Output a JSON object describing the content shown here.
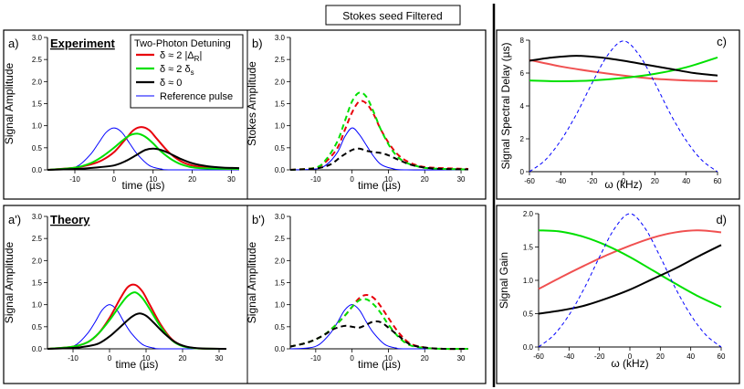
{
  "header": {
    "title": "Stokes seed Filtered"
  },
  "legend": {
    "title": "Two-Photon Detuning",
    "entries": [
      {
        "label": "δ ≈ 2 |Δ",
        "sub": "R",
        "tail": "|",
        "color": "#e8000b"
      },
      {
        "label": "δ ≈ 2 δ",
        "sub": "s",
        "tail": "",
        "color": "#00e000"
      },
      {
        "label": "δ ≈ 0",
        "sub": "",
        "tail": "",
        "color": "#000000"
      },
      {
        "label": "Reference pulse",
        "sub": "",
        "tail": "",
        "color": "#0000ff"
      }
    ]
  },
  "colors": {
    "red": "#e8000b",
    "green": "#00e000",
    "black": "#000000",
    "blue": "#0000ff",
    "light_red": "#f05050"
  },
  "chart_data": [
    {
      "id": "a",
      "panel_label": "a)",
      "title": "Experiment",
      "type": "line",
      "xlabel": "time (µs)",
      "ylabel": "Signal Amplitude",
      "xlim": [
        -17,
        32
      ],
      "ylim": [
        0,
        3.0
      ],
      "xticks": [
        -10,
        0,
        10,
        20,
        30
      ],
      "yticks": [
        0,
        0.5,
        1.0,
        1.5,
        2.0,
        2.5,
        3.0
      ],
      "ytick_labels": [
        "0.0",
        "0.5",
        "1.0",
        "1.5",
        "2.0",
        "2.5",
        "3.0"
      ],
      "series": [
        {
          "name": "Reference pulse",
          "color": "blue",
          "style": "solid",
          "width": 1,
          "x": [
            -17,
            -12,
            -9,
            -6,
            -4,
            -2,
            0,
            2,
            4,
            6,
            9,
            12,
            15,
            32
          ],
          "y": [
            0,
            0.02,
            0.1,
            0.35,
            0.6,
            0.85,
            0.95,
            0.85,
            0.6,
            0.35,
            0.1,
            0.02,
            0,
            0
          ]
        },
        {
          "name": "δ ≈ 2 |ΔR|",
          "color": "red",
          "style": "solid",
          "width": 2,
          "x": [
            -17,
            -10,
            -6,
            -3,
            0,
            3,
            5,
            7,
            9,
            11,
            14,
            17,
            20,
            25,
            32
          ],
          "y": [
            0,
            0.05,
            0.12,
            0.22,
            0.4,
            0.7,
            0.9,
            0.97,
            0.9,
            0.7,
            0.4,
            0.2,
            0.1,
            0.04,
            0.02
          ]
        },
        {
          "name": "δ ≈ 2 δs",
          "color": "green",
          "style": "solid",
          "width": 2,
          "x": [
            -17,
            -10,
            -6,
            -3,
            0,
            2,
            4,
            6,
            8,
            10,
            12,
            15,
            18,
            22,
            32
          ],
          "y": [
            0,
            0.05,
            0.15,
            0.3,
            0.5,
            0.65,
            0.78,
            0.82,
            0.75,
            0.6,
            0.42,
            0.22,
            0.1,
            0.04,
            0.02
          ]
        },
        {
          "name": "δ ≈ 0",
          "color": "black",
          "style": "solid",
          "width": 2,
          "x": [
            -17,
            -10,
            -5,
            0,
            3,
            6,
            8,
            10,
            12,
            14,
            17,
            20,
            24,
            28,
            32
          ],
          "y": [
            0,
            0.02,
            0.05,
            0.1,
            0.2,
            0.35,
            0.45,
            0.48,
            0.45,
            0.38,
            0.25,
            0.15,
            0.08,
            0.05,
            0.04
          ]
        }
      ]
    },
    {
      "id": "b",
      "panel_label": "b)",
      "title": "",
      "type": "line",
      "xlabel": "time (µs)",
      "ylabel": "Stokes Amplitude",
      "xlim": [
        -17,
        32
      ],
      "ylim": [
        0,
        3.0
      ],
      "xticks": [
        -10,
        0,
        10,
        20,
        30
      ],
      "yticks": [
        0,
        0.5,
        1.0,
        1.5,
        2.0,
        2.5,
        3.0
      ],
      "ytick_labels": [
        "0.0",
        "0.5",
        "1.0",
        "1.5",
        "2.0",
        "2.5",
        "3.0"
      ],
      "series": [
        {
          "name": "Reference pulse",
          "color": "blue",
          "style": "solid",
          "width": 1,
          "x": [
            -17,
            -10,
            -7,
            -4,
            -2,
            0,
            2,
            4,
            6,
            8,
            11,
            15,
            32
          ],
          "y": [
            0,
            0.02,
            0.12,
            0.4,
            0.75,
            0.95,
            0.8,
            0.55,
            0.3,
            0.12,
            0.03,
            0,
            0
          ]
        },
        {
          "name": "δ ≈ 2 |ΔR|",
          "color": "red",
          "style": "dashed",
          "width": 2,
          "x": [
            -17,
            -10,
            -7,
            -4,
            -2,
            0,
            2,
            4,
            6,
            8,
            11,
            14,
            18,
            22,
            32
          ],
          "y": [
            0,
            0.05,
            0.2,
            0.5,
            0.9,
            1.3,
            1.55,
            1.5,
            1.25,
            0.9,
            0.5,
            0.25,
            0.1,
            0.05,
            0.02
          ]
        },
        {
          "name": "δ ≈ 2 δs",
          "color": "green",
          "style": "dashed",
          "width": 2,
          "x": [
            -17,
            -10,
            -7,
            -4,
            -2,
            0,
            2,
            4,
            6,
            8,
            11,
            14,
            18,
            22,
            32
          ],
          "y": [
            0,
            0.05,
            0.25,
            0.65,
            1.1,
            1.55,
            1.75,
            1.65,
            1.3,
            0.9,
            0.45,
            0.2,
            0.08,
            0.03,
            0.01
          ]
        },
        {
          "name": "δ ≈ 0",
          "color": "black",
          "style": "dashed",
          "width": 2,
          "x": [
            -17,
            -10,
            -6,
            -3,
            0,
            2,
            4,
            6,
            8,
            10,
            13,
            16,
            20,
            25,
            32
          ],
          "y": [
            0,
            0.03,
            0.12,
            0.3,
            0.45,
            0.48,
            0.43,
            0.4,
            0.38,
            0.33,
            0.22,
            0.12,
            0.05,
            0.02,
            0.01
          ]
        }
      ]
    },
    {
      "id": "a_prime",
      "panel_label": "a')",
      "title": "Theory",
      "type": "line",
      "xlabel": "time (µs)",
      "ylabel": "Signal Amplitude",
      "xlim": [
        -17,
        32
      ],
      "ylim": [
        0,
        3.0
      ],
      "xticks": [
        -10,
        0,
        10,
        20,
        30
      ],
      "yticks": [
        0,
        0.5,
        1.0,
        1.5,
        2.0,
        2.5,
        3.0
      ],
      "ytick_labels": [
        "0.0",
        "0.5",
        "1.0",
        "1.5",
        "2.0",
        "2.5",
        "3.0"
      ],
      "series": [
        {
          "name": "Reference pulse",
          "color": "blue",
          "style": "solid",
          "width": 1,
          "x": [
            -17,
            -12,
            -9,
            -6,
            -4,
            -2,
            0,
            2,
            4,
            6,
            9,
            12,
            15,
            32
          ],
          "y": [
            0,
            0.02,
            0.1,
            0.35,
            0.6,
            0.88,
            1.0,
            0.88,
            0.6,
            0.35,
            0.1,
            0.02,
            0,
            0
          ]
        },
        {
          "name": "δ ≈ 2 |ΔR|",
          "color": "red",
          "style": "solid",
          "width": 2,
          "x": [
            -17,
            -10,
            -6,
            -3,
            0,
            3,
            5,
            7,
            9,
            11,
            14,
            17,
            20,
            24,
            32
          ],
          "y": [
            0,
            0.05,
            0.15,
            0.35,
            0.7,
            1.15,
            1.4,
            1.45,
            1.3,
            1.0,
            0.55,
            0.22,
            0.07,
            0.01,
            0
          ]
        },
        {
          "name": "δ ≈ 2 δs",
          "color": "green",
          "style": "solid",
          "width": 2,
          "x": [
            -17,
            -10,
            -6,
            -3,
            0,
            3,
            5,
            7,
            9,
            11,
            14,
            17,
            20,
            24,
            32
          ],
          "y": [
            0,
            0.05,
            0.15,
            0.35,
            0.65,
            1.0,
            1.2,
            1.28,
            1.15,
            0.9,
            0.5,
            0.2,
            0.06,
            0.01,
            0
          ]
        },
        {
          "name": "δ ≈ 0",
          "color": "black",
          "style": "solid",
          "width": 2,
          "x": [
            -17,
            -10,
            -6,
            -3,
            0,
            3,
            6,
            8,
            10,
            12,
            15,
            18,
            21,
            25,
            32
          ],
          "y": [
            0,
            0.02,
            0.06,
            0.12,
            0.28,
            0.5,
            0.72,
            0.8,
            0.75,
            0.6,
            0.35,
            0.15,
            0.05,
            0.01,
            0
          ]
        }
      ]
    },
    {
      "id": "b_prime",
      "panel_label": "b')",
      "title": "",
      "type": "line",
      "xlabel": "time (µs)",
      "ylabel": "Signal Amplitude",
      "xlim": [
        -17,
        32
      ],
      "ylim": [
        0,
        3.0
      ],
      "xticks": [
        -10,
        0,
        10,
        20,
        30
      ],
      "yticks": [
        0,
        0.5,
        1.0,
        1.5,
        2.0,
        2.5,
        3.0
      ],
      "ytick_labels": [
        "0.0",
        "0.5",
        "1.0",
        "1.5",
        "2.0",
        "2.5",
        "3.0"
      ],
      "series": [
        {
          "name": "Reference pulse",
          "color": "blue",
          "style": "solid",
          "width": 1,
          "x": [
            -17,
            -12,
            -9,
            -6,
            -4,
            -2,
            0,
            2,
            4,
            6,
            9,
            12,
            15,
            32
          ],
          "y": [
            0,
            0.02,
            0.1,
            0.35,
            0.6,
            0.88,
            1.0,
            0.88,
            0.6,
            0.35,
            0.1,
            0.02,
            0,
            0
          ]
        },
        {
          "name": "δ ≈ 2 |ΔR|",
          "color": "red",
          "style": "dashed",
          "width": 2,
          "x": [
            -17,
            -12,
            -8,
            -5,
            -2,
            0,
            2,
            4,
            6,
            8,
            10,
            13,
            16,
            20,
            25,
            32
          ],
          "y": [
            0.05,
            0.15,
            0.3,
            0.5,
            0.75,
            0.95,
            1.15,
            1.22,
            1.15,
            0.95,
            0.7,
            0.35,
            0.12,
            0.03,
            0,
            0
          ]
        },
        {
          "name": "δ ≈ 2 δs",
          "color": "green",
          "style": "dashed",
          "width": 2,
          "x": [
            -17,
            -12,
            -8,
            -5,
            -2,
            0,
            2,
            4,
            6,
            8,
            10,
            13,
            16,
            20,
            25,
            32
          ],
          "y": [
            0.05,
            0.15,
            0.3,
            0.5,
            0.75,
            0.95,
            1.1,
            1.12,
            1.0,
            0.8,
            0.55,
            0.25,
            0.08,
            0.02,
            0,
            0
          ]
        },
        {
          "name": "δ ≈ 0",
          "color": "black",
          "style": "dashed",
          "width": 2,
          "x": [
            -17,
            -12,
            -8,
            -5,
            -2,
            0,
            2,
            4,
            6,
            8,
            10,
            13,
            16,
            20,
            25,
            32
          ],
          "y": [
            0.05,
            0.15,
            0.3,
            0.45,
            0.52,
            0.5,
            0.48,
            0.55,
            0.62,
            0.6,
            0.48,
            0.28,
            0.1,
            0.03,
            0,
            0
          ]
        }
      ]
    },
    {
      "id": "c",
      "panel_label": "c)",
      "title": "",
      "type": "line",
      "xlabel": "ω (kHz)",
      "ylabel": "Signal Spectral Delay (µs)",
      "xlim": [
        -60,
        60
      ],
      "ylim": [
        0,
        8
      ],
      "xticks": [
        -60,
        -40,
        -20,
        0,
        20,
        40,
        60
      ],
      "yticks": [
        0,
        2,
        4,
        6,
        8
      ],
      "ytick_labels": [
        "0",
        "2",
        "4",
        "6",
        "8"
      ],
      "series": [
        {
          "name": "δ ≈ 2 |ΔR|",
          "color": "light_red",
          "style": "solid",
          "width": 2,
          "x": [
            -60,
            -40,
            -20,
            0,
            20,
            40,
            60
          ],
          "y": [
            6.8,
            6.4,
            6.1,
            5.85,
            5.65,
            5.55,
            5.5
          ]
        },
        {
          "name": "δ ≈ 2 δs",
          "color": "green",
          "style": "solid",
          "width": 2,
          "x": [
            -60,
            -40,
            -20,
            0,
            20,
            40,
            60
          ],
          "y": [
            5.55,
            5.5,
            5.55,
            5.7,
            5.95,
            6.35,
            6.95
          ]
        },
        {
          "name": "δ ≈ 0",
          "color": "black",
          "style": "solid",
          "width": 2,
          "x": [
            -60,
            -45,
            -30,
            -15,
            0,
            15,
            30,
            45,
            60
          ],
          "y": [
            6.75,
            6.95,
            7.05,
            6.95,
            6.75,
            6.5,
            6.25,
            6.0,
            5.85
          ]
        },
        {
          "name": "Reference pulse",
          "color": "blue",
          "style": "dashed",
          "width": 1,
          "x": [
            -60,
            -50,
            -40,
            -30,
            -20,
            -10,
            0,
            10,
            20,
            30,
            40,
            50,
            60
          ],
          "y": [
            0,
            0.7,
            1.9,
            3.5,
            5.4,
            7.1,
            7.95,
            7.1,
            5.4,
            3.5,
            1.9,
            0.7,
            0
          ]
        }
      ]
    },
    {
      "id": "d",
      "panel_label": "d)",
      "title": "",
      "type": "line",
      "xlabel": "ω (kHz)",
      "ylabel": "Signal Gain",
      "xlim": [
        -60,
        60
      ],
      "ylim": [
        0,
        2.0
      ],
      "xticks": [
        -60,
        -40,
        -20,
        0,
        20,
        40,
        60
      ],
      "yticks": [
        0,
        0.5,
        1.0,
        1.5,
        2.0
      ],
      "ytick_labels": [
        "0.0",
        "0.5",
        "1.0",
        "1.5",
        "2.0"
      ],
      "series": [
        {
          "name": "δ ≈ 2 |ΔR|",
          "color": "light_red",
          "style": "solid",
          "width": 2,
          "x": [
            -60,
            -45,
            -30,
            -15,
            0,
            15,
            30,
            45,
            60
          ],
          "y": [
            0.87,
            1.05,
            1.22,
            1.38,
            1.52,
            1.64,
            1.72,
            1.75,
            1.72
          ]
        },
        {
          "name": "δ ≈ 2 δs",
          "color": "green",
          "style": "solid",
          "width": 2,
          "x": [
            -60,
            -45,
            -30,
            -15,
            0,
            15,
            30,
            45,
            60
          ],
          "y": [
            1.75,
            1.73,
            1.65,
            1.52,
            1.35,
            1.15,
            0.95,
            0.76,
            0.6
          ]
        },
        {
          "name": "δ ≈ 0",
          "color": "black",
          "style": "solid",
          "width": 2,
          "x": [
            -60,
            -45,
            -30,
            -15,
            0,
            15,
            30,
            45,
            60
          ],
          "y": [
            0.5,
            0.55,
            0.62,
            0.73,
            0.86,
            1.02,
            1.18,
            1.36,
            1.53
          ]
        },
        {
          "name": "Reference pulse",
          "color": "blue",
          "style": "dashed",
          "width": 1,
          "x": [
            -60,
            -50,
            -40,
            -30,
            -20,
            -10,
            0,
            10,
            20,
            30,
            40,
            50,
            60
          ],
          "y": [
            0,
            0.18,
            0.48,
            0.88,
            1.35,
            1.78,
            2.0,
            1.78,
            1.35,
            0.88,
            0.48,
            0.18,
            0
          ]
        }
      ]
    }
  ]
}
